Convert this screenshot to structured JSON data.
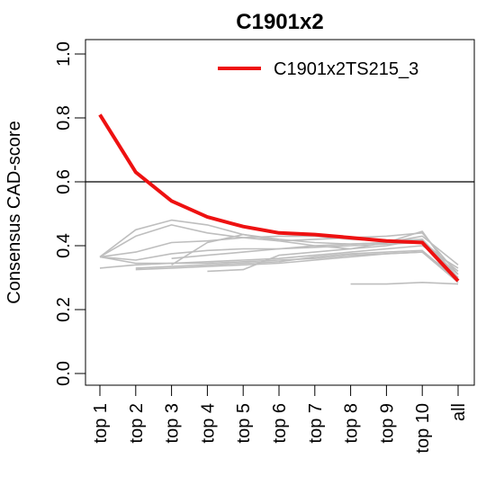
{
  "chart_data": {
    "type": "line",
    "title": "C1901x2",
    "ylabel": "Consensus CAD-score",
    "xlabel": "",
    "categories": [
      "top 1",
      "top 2",
      "top 3",
      "top 4",
      "top 5",
      "top 6",
      "top 7",
      "top 8",
      "top 9",
      "top 10",
      "all"
    ],
    "ylim": [
      0.0,
      1.0
    ],
    "yticks": [
      "0.0",
      "0.2",
      "0.4",
      "0.6",
      "0.8",
      "1.0"
    ],
    "reference_line": 0.6,
    "grid": false,
    "legend": {
      "position": "top-right"
    },
    "highlight_series": {
      "name": "C1901x2TS215_3",
      "color": "#ee1111",
      "values": [
        0.81,
        0.63,
        0.54,
        0.49,
        0.46,
        0.44,
        0.435,
        0.425,
        0.415,
        0.41,
        0.29
      ]
    },
    "background_color": "#bebebe",
    "background_series": [
      {
        "values": [
          0.365,
          0.45,
          0.48,
          0.465,
          0.435,
          0.42,
          0.41,
          0.405,
          0.41,
          0.445,
          0.29
        ]
      },
      {
        "values": [
          0.365,
          0.43,
          0.465,
          0.44,
          0.425,
          0.415,
          0.42,
          0.425,
          0.43,
          0.44,
          0.31
        ]
      },
      {
        "values": [
          0.365,
          0.38,
          0.41,
          0.415,
          0.425,
          0.43,
          0.43,
          0.42,
          0.415,
          0.42,
          0.3
        ]
      },
      {
        "values": [
          0.365,
          0.355,
          0.375,
          0.385,
          0.39,
          0.39,
          0.4,
          0.405,
          0.41,
          0.415,
          0.32
        ]
      },
      {
        "values": [
          0.365,
          0.345,
          0.345,
          0.35,
          0.355,
          0.36,
          0.37,
          0.38,
          0.39,
          0.4,
          0.33
        ]
      },
      {
        "values": [
          0.33,
          0.34,
          0.345,
          0.345,
          0.35,
          0.355,
          0.36,
          0.37,
          0.375,
          0.38,
          0.3
        ]
      },
      {
        "values": [
          null,
          0.33,
          0.335,
          0.34,
          0.345,
          0.35,
          0.365,
          0.375,
          0.38,
          0.385,
          0.29
        ]
      },
      {
        "values": [
          null,
          0.325,
          0.33,
          0.335,
          0.34,
          0.345,
          0.355,
          0.365,
          0.375,
          0.38,
          0.285
        ]
      },
      {
        "values": [
          null,
          null,
          0.34,
          0.41,
          0.435,
          0.415,
          0.4,
          0.39,
          0.4,
          0.42,
          0.3
        ]
      },
      {
        "values": [
          null,
          null,
          0.36,
          0.37,
          0.38,
          0.39,
          0.395,
          0.4,
          0.405,
          0.41,
          0.31
        ]
      },
      {
        "values": [
          null,
          null,
          null,
          0.32,
          0.325,
          0.37,
          0.38,
          0.39,
          0.41,
          0.43,
          0.34
        ]
      },
      {
        "values": [
          null,
          null,
          null,
          null,
          null,
          null,
          null,
          0.28,
          0.28,
          0.285,
          0.28
        ]
      }
    ]
  }
}
